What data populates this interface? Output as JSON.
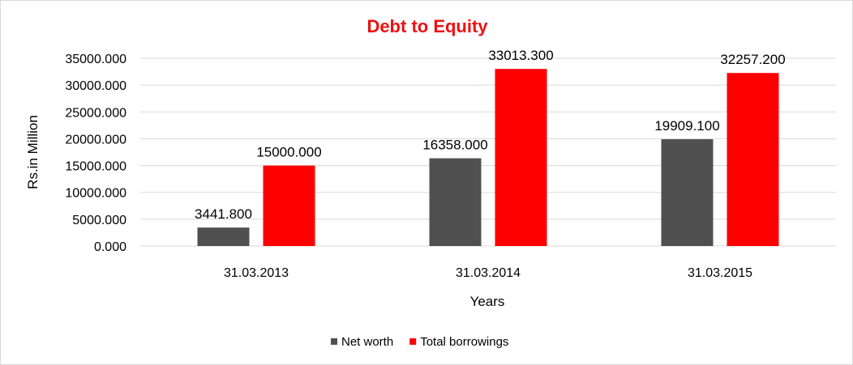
{
  "chart_data": {
    "type": "bar",
    "title": "Debt to Equity",
    "xlabel": "Years",
    "ylabel": "Rs.in Million",
    "categories": [
      "31.03.2013",
      "31.03.2014",
      "31.03.2015"
    ],
    "series": [
      {
        "name": "Net worth",
        "color": "#505050",
        "values": [
          3441.8,
          16358.0,
          19909.1
        ],
        "labels": [
          "3441.800",
          "16358.000",
          "19909.100"
        ]
      },
      {
        "name": "Total borrowings",
        "color": "#ff0000",
        "values": [
          15000.0,
          33013.3,
          32257.2
        ],
        "labels": [
          "15000.000",
          "33013.300",
          "32257.200"
        ]
      }
    ],
    "ylim": [
      0,
      35000
    ],
    "yticks": [
      0,
      5000,
      10000,
      15000,
      20000,
      25000,
      30000,
      35000
    ],
    "ytick_labels": [
      "0.000",
      "5000.000",
      "10000.000",
      "15000.000",
      "20000.000",
      "25000.000",
      "30000.000",
      "35000.000"
    ],
    "grid": true,
    "legend_position": "bottom",
    "title_color": "#ee1111"
  }
}
